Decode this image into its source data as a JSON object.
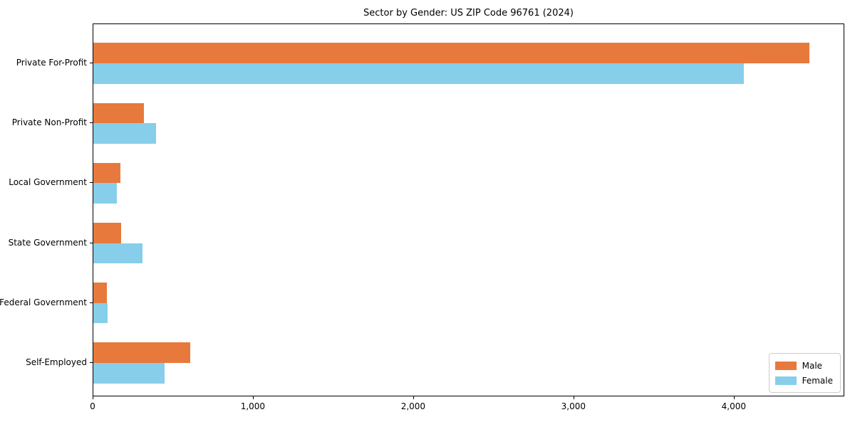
{
  "chart_data": {
    "type": "bar",
    "orientation": "horizontal",
    "title": "Sector by Gender: US ZIP Code 96761 (2024)",
    "categories": [
      "Private For-Profit",
      "Private Non-Profit",
      "Local Government",
      "State Government",
      "Federal Government",
      "Self-Employed"
    ],
    "series": [
      {
        "name": "Male",
        "color": "#e8793d",
        "values": [
          4467,
          316,
          168,
          172,
          86,
          603
        ]
      },
      {
        "name": "Female",
        "color": "#87ceeb",
        "values": [
          4058,
          390,
          148,
          307,
          89,
          445
        ]
      }
    ],
    "xlabel": "",
    "ylabel": "",
    "xlim": [
      0,
      4690
    ],
    "x_ticks": [
      0,
      1000,
      2000,
      3000,
      4000
    ],
    "x_tick_labels": [
      "0",
      "1,000",
      "2,000",
      "3,000",
      "4,000"
    ],
    "grid": false,
    "legend_position": "lower right",
    "background_color": "#ffffff",
    "axis_color": "#000000"
  }
}
